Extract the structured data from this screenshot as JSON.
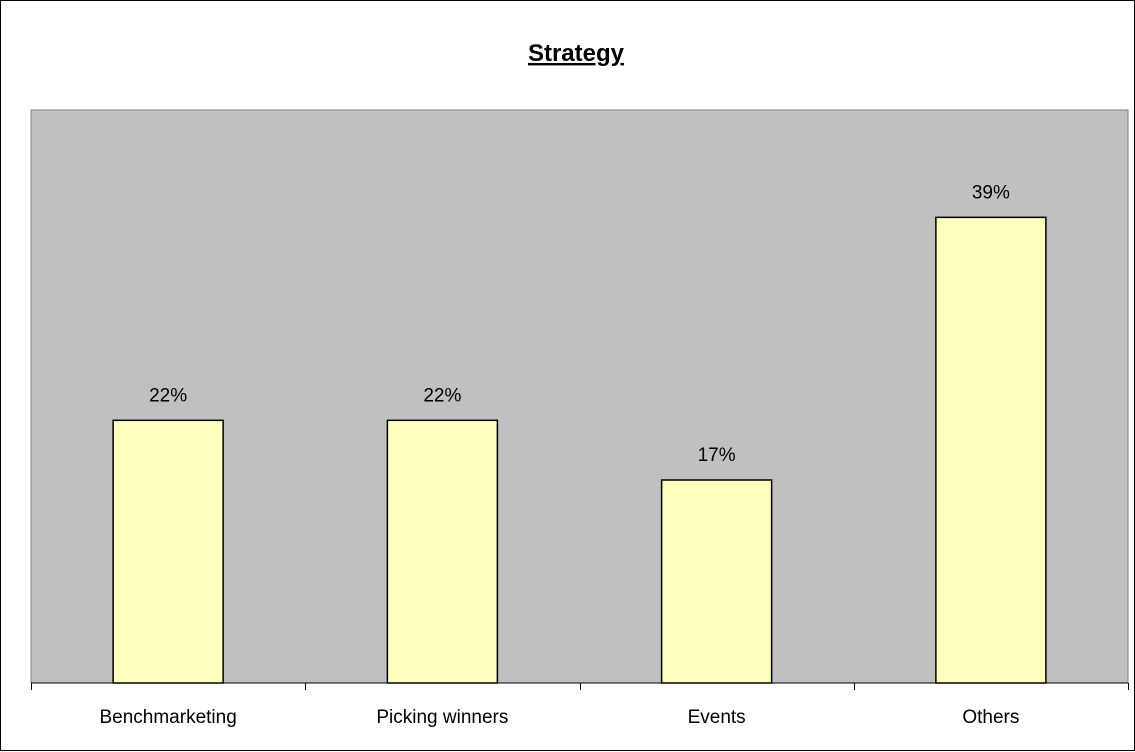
{
  "chart_data": {
    "type": "bar",
    "title": "Strategy",
    "xlabel": "",
    "ylabel": "",
    "categories": [
      "Benchmarketing",
      "Picking winners",
      "Events",
      "Others"
    ],
    "values": [
      22,
      22,
      17,
      39
    ],
    "value_labels": [
      "22%",
      "22%",
      "17%",
      "39%"
    ],
    "ylim": [
      0,
      45
    ],
    "grid": false,
    "legend": "none",
    "colors": {
      "plot_background": "#C0C0C0",
      "bar_fill": "#FFFFC0",
      "bar_stroke": "#000000"
    }
  }
}
